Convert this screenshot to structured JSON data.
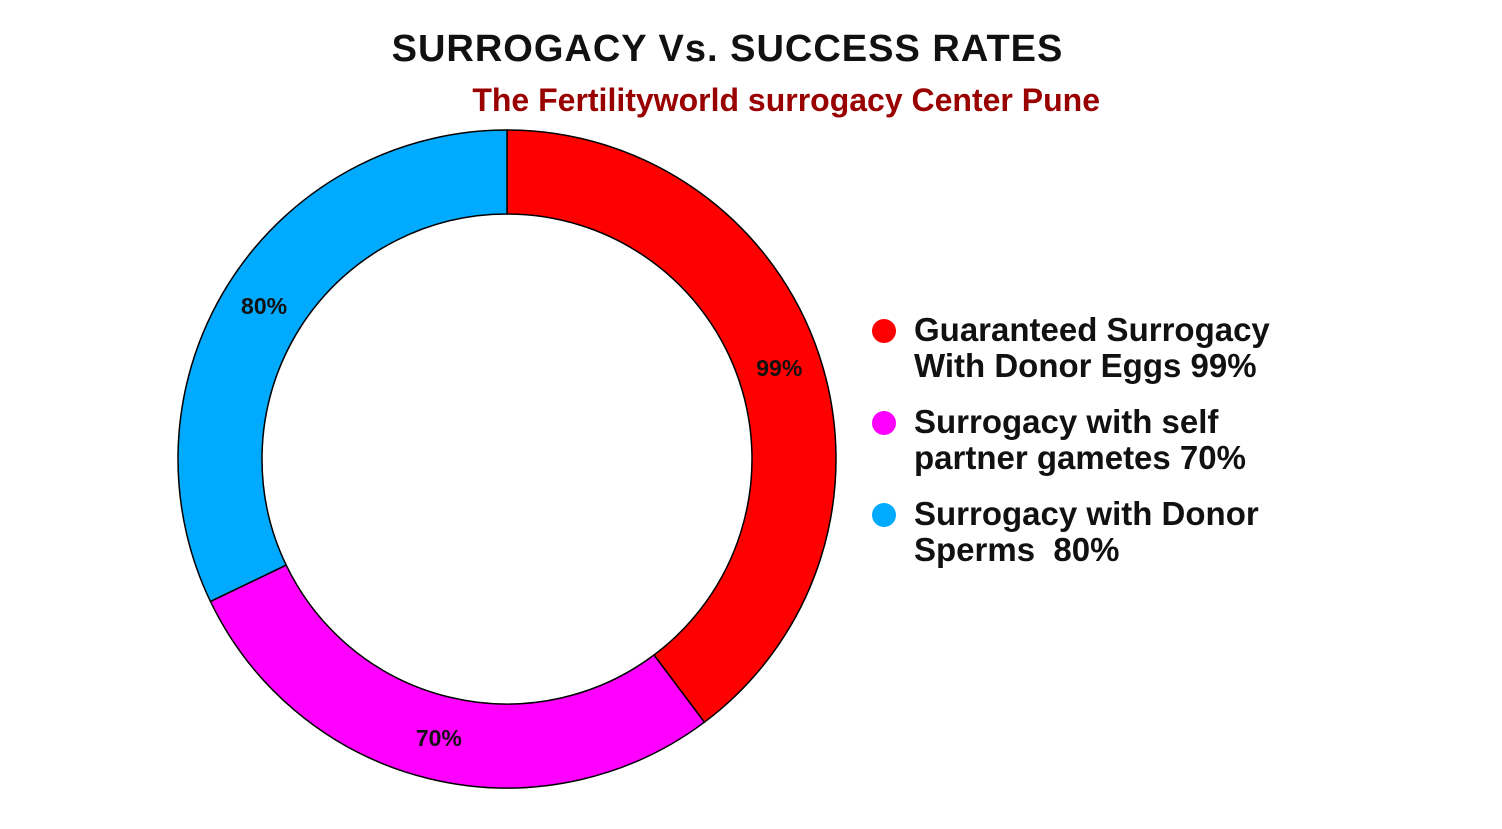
{
  "chart_data": {
    "type": "pie",
    "variant": "donut",
    "title": "SURROGACY Vs. SUCCESS RATES",
    "subtitle": "The Fertilityworld surrogacy Center Pune",
    "categories": [
      "Guaranteed Surrogacy With Donor Eggs 99%",
      "Surrogacy with self partner gametes 70%",
      "Surrogacy with Donor Sperms  80%"
    ],
    "values": [
      99,
      70,
      80
    ],
    "data_labels": [
      "99%",
      "70%",
      "80%"
    ],
    "colors": [
      "#ff0000",
      "#ff00ff",
      "#00aaff"
    ],
    "legend": "right"
  },
  "style": {
    "title_color": "#111111",
    "subtitle_color": "#990000"
  }
}
